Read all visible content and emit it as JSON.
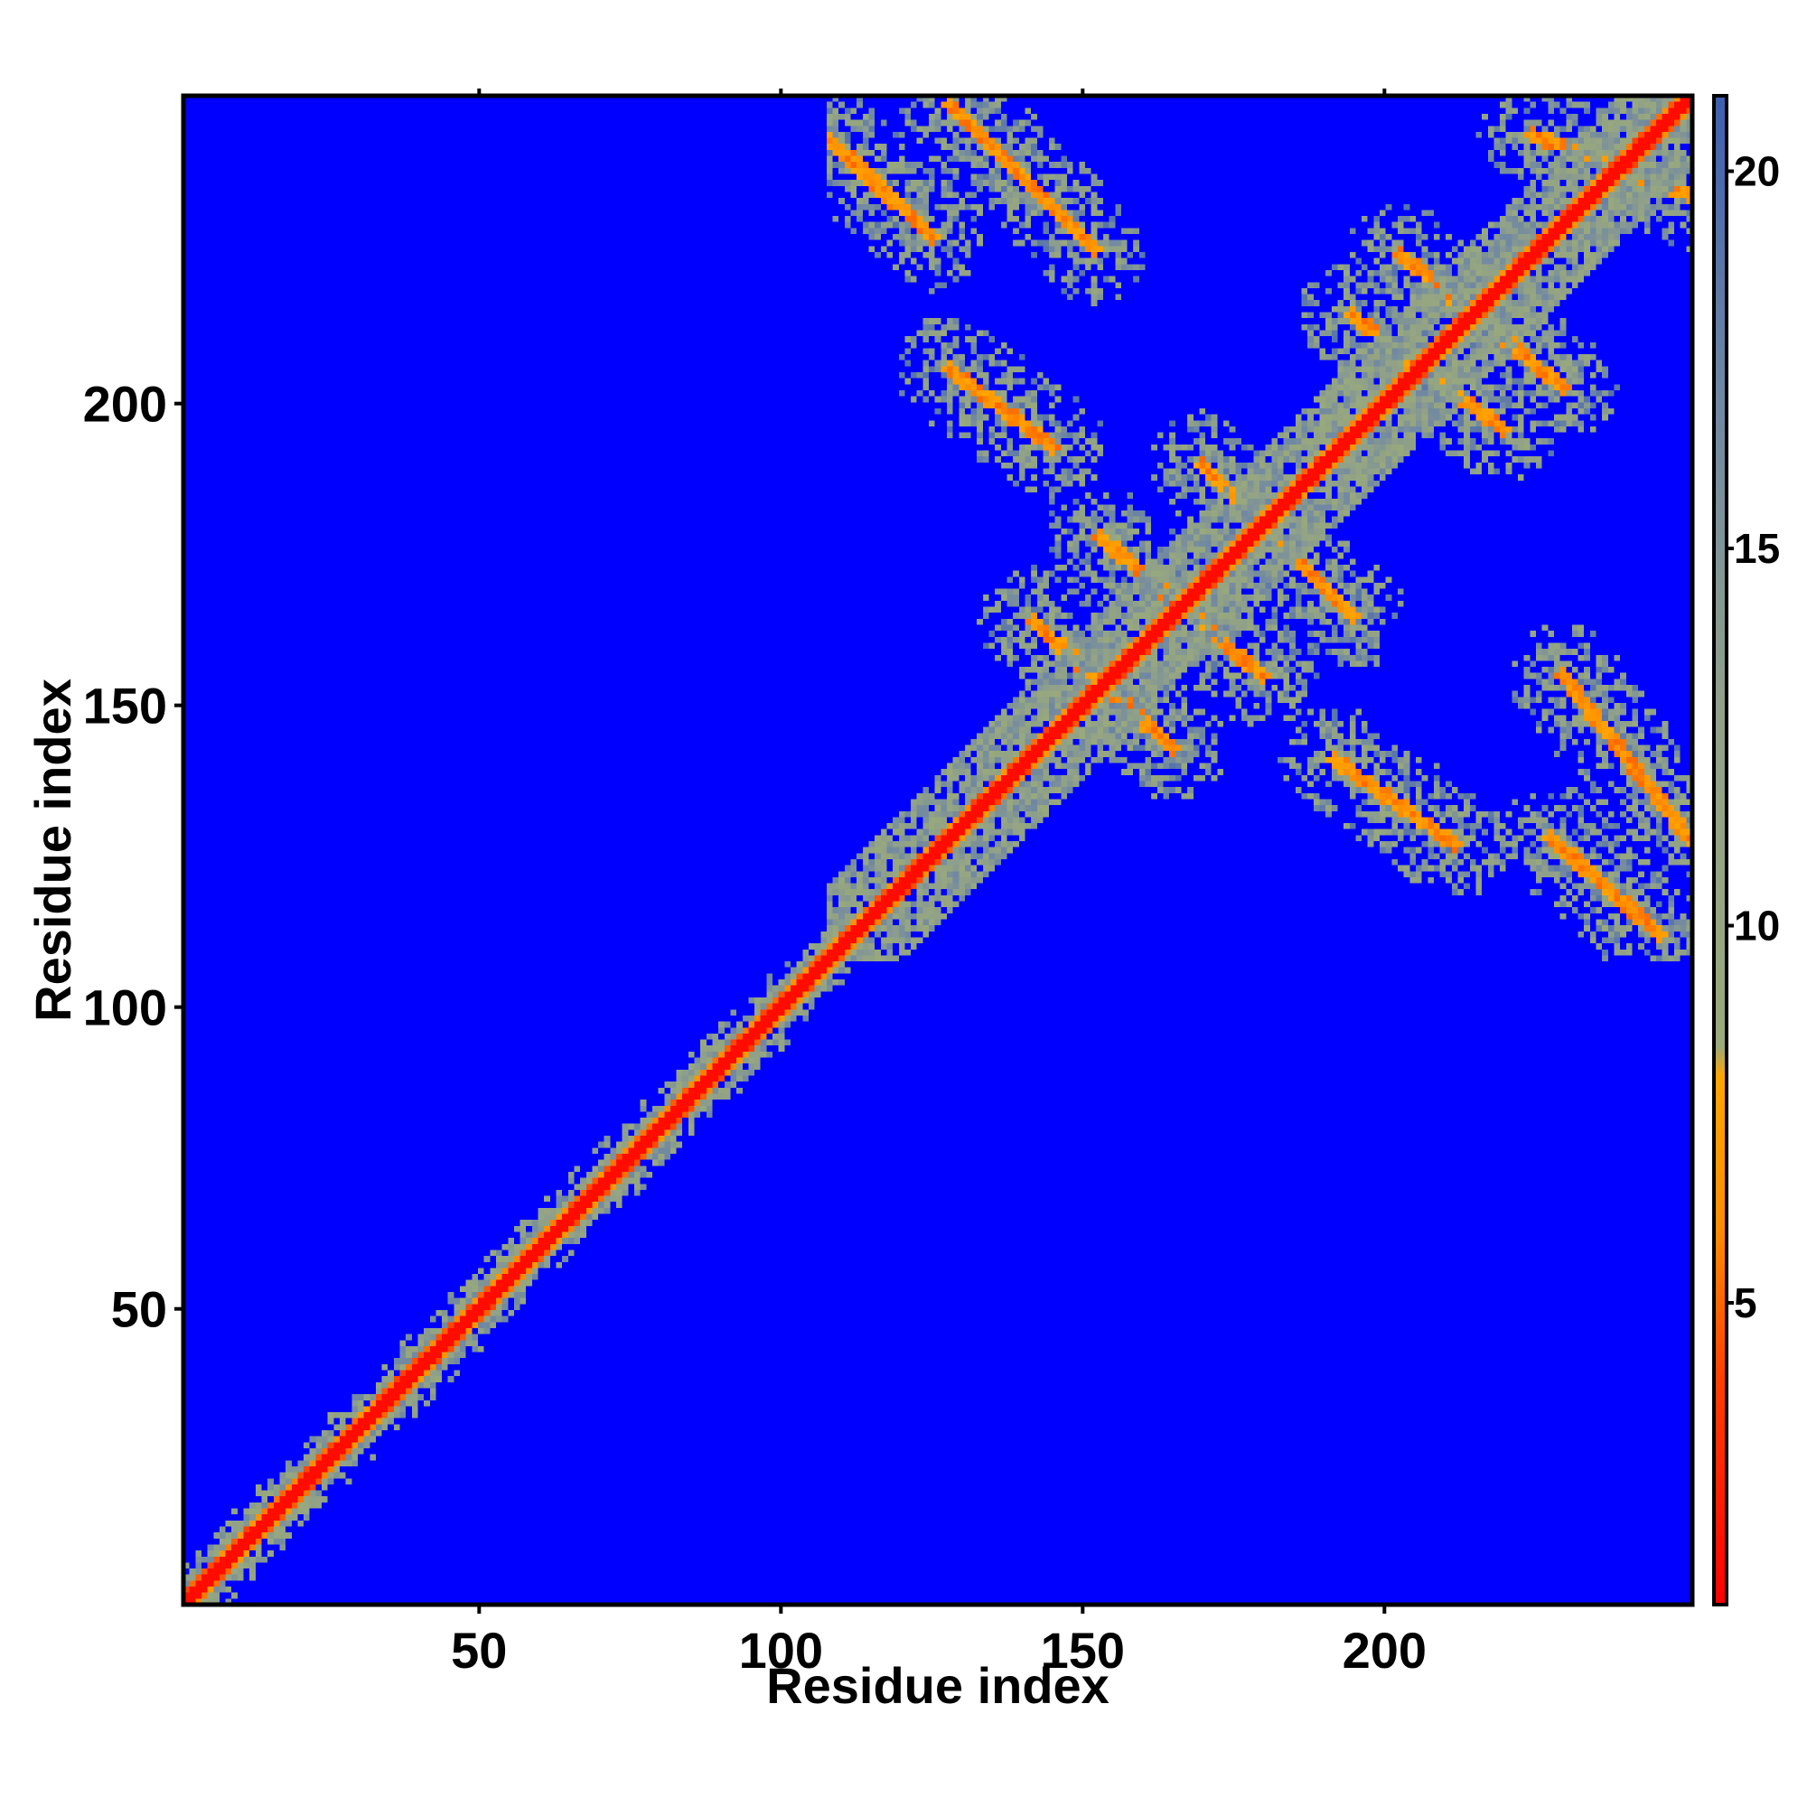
{
  "chart_data": {
    "type": "heatmap",
    "title": "",
    "xlabel": "Residue index",
    "ylabel": "Residue index",
    "xlim": [
      1,
      251
    ],
    "ylim": [
      1,
      251
    ],
    "x_ticks": [
      {
        "value": 50,
        "label": "50"
      },
      {
        "value": 100,
        "label": "100"
      },
      {
        "value": 150,
        "label": "150"
      },
      {
        "value": 200,
        "label": "200"
      }
    ],
    "y_ticks": [
      {
        "value": 50,
        "label": "50"
      },
      {
        "value": 100,
        "label": "100"
      },
      {
        "value": 150,
        "label": "150"
      },
      {
        "value": 200,
        "label": "200"
      }
    ],
    "colorbar": {
      "range": [
        1,
        21
      ],
      "ticks": [
        {
          "value": 5,
          "label": "5"
        },
        {
          "value": 10,
          "label": "10"
        },
        {
          "value": 15,
          "label": "15"
        },
        {
          "value": 20,
          "label": "20"
        }
      ],
      "stops": [
        {
          "value": 1,
          "color": "#ff0000"
        },
        {
          "value": 4,
          "color": "#ff4000"
        },
        {
          "value": 6,
          "color": "#ff8c00"
        },
        {
          "value": 8,
          "color": "#ffa500"
        },
        {
          "value": 8.4,
          "color": "#9aaa7a"
        },
        {
          "value": 13,
          "color": "#8fa08a"
        },
        {
          "value": 17,
          "color": "#6f87a3"
        },
        {
          "value": 21,
          "color": "#3d5fb0"
        }
      ],
      "background_color": "#0000ff"
    },
    "grid": false,
    "description_segments": [
      {
        "kind": "diagonal",
        "from": [
          1,
          1
        ],
        "to": [
          251,
          251
        ],
        "value": 2
      }
    ],
    "contact_bands": [
      {
        "x1": 105,
        "y1": 247,
        "x2": 125,
        "y2": 228,
        "value": 7
      },
      {
        "x1": 128,
        "y1": 250,
        "x2": 152,
        "y2": 226,
        "value": 6
      },
      {
        "x1": 128,
        "y1": 206,
        "x2": 145,
        "y2": 193,
        "value": 6
      },
      {
        "x1": 142,
        "y1": 164,
        "x2": 165,
        "y2": 143,
        "value": 6
      },
      {
        "x1": 153,
        "y1": 178,
        "x2": 180,
        "y2": 155,
        "value": 6
      },
      {
        "x1": 170,
        "y1": 190,
        "x2": 195,
        "y2": 165,
        "value": 7
      },
      {
        "x1": 195,
        "y1": 215,
        "x2": 220,
        "y2": 196,
        "value": 6
      },
      {
        "x1": 203,
        "y1": 225,
        "x2": 230,
        "y2": 203,
        "value": 6
      },
      {
        "x1": 192,
        "y1": 141,
        "x2": 212,
        "y2": 127,
        "value": 6
      },
      {
        "x1": 230,
        "y1": 155,
        "x2": 251,
        "y2": 128,
        "value": 6
      },
      {
        "x1": 228,
        "y1": 128,
        "x2": 246,
        "y2": 112,
        "value": 6
      },
      {
        "x1": 225,
        "y1": 245,
        "x2": 251,
        "y2": 235,
        "value": 7
      }
    ],
    "halo_region": {
      "x_min": 108,
      "x_max": 251,
      "y_min": 108,
      "y_max": 251
    }
  }
}
